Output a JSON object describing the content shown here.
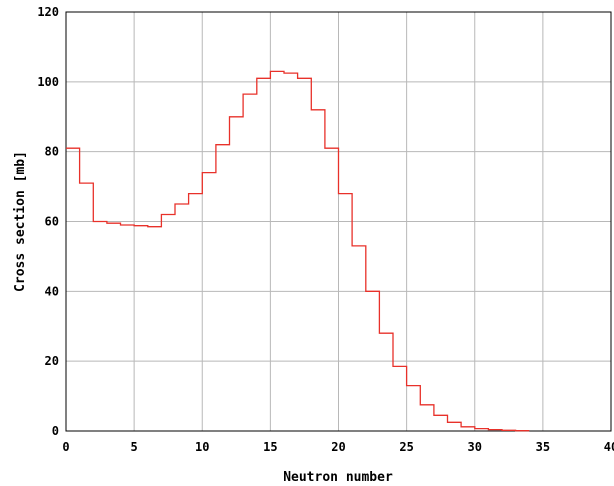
{
  "chart_data": {
    "type": "line",
    "title": "",
    "xlabel": "Neutron number",
    "ylabel": "Cross section [mb]",
    "xlim": [
      0,
      40
    ],
    "ylim": [
      0,
      120
    ],
    "xticks": [
      0,
      5,
      10,
      15,
      20,
      25,
      30,
      35,
      40
    ],
    "yticks": [
      0,
      20,
      40,
      60,
      80,
      100,
      120
    ],
    "xtick_labels": [
      "0",
      "5",
      "10",
      "15",
      "20",
      "25",
      "30",
      "35",
      "40"
    ],
    "ytick_labels": [
      "0",
      "20",
      "40",
      "60",
      "80",
      "100",
      "120"
    ],
    "grid": true,
    "style": "step",
    "series": [
      {
        "color": "#e8312a",
        "bin_edges": [
          0,
          1,
          2,
          3,
          4,
          5,
          6,
          7,
          8,
          9,
          10,
          11,
          12,
          13,
          14,
          15,
          16,
          17,
          18,
          19,
          20,
          21,
          22,
          23,
          24,
          25,
          26,
          27,
          28,
          29,
          30,
          31,
          32,
          33,
          34
        ],
        "values": [
          81,
          71,
          60,
          59.5,
          59,
          58.8,
          58.5,
          62,
          65,
          68,
          74,
          82,
          90,
          96.5,
          101,
          103,
          102.5,
          101,
          92,
          81,
          68,
          53,
          40,
          28,
          18.5,
          13,
          7.5,
          4.5,
          2.5,
          1.2,
          0.7,
          0.4,
          0.2,
          0.1
        ]
      }
    ]
  }
}
